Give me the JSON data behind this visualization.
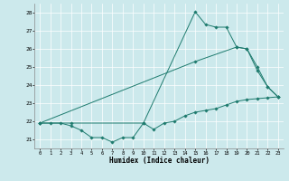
{
  "xlabel": "Humidex (Indice chaleur)",
  "xlim": [
    -0.5,
    23.5
  ],
  "ylim": [
    20.5,
    28.5
  ],
  "yticks": [
    21,
    22,
    23,
    24,
    25,
    26,
    27,
    28
  ],
  "xticks": [
    0,
    1,
    2,
    3,
    4,
    5,
    6,
    7,
    8,
    9,
    10,
    11,
    12,
    13,
    14,
    15,
    16,
    17,
    18,
    19,
    20,
    21,
    22,
    23
  ],
  "bg_color": "#cce9ec",
  "line_color": "#1e7b6e",
  "series1_x": [
    0,
    1,
    2,
    3,
    4,
    5,
    6,
    7,
    8,
    9,
    10,
    11,
    12,
    13,
    14,
    15,
    16,
    17,
    18,
    19,
    20,
    21,
    22,
    23
  ],
  "series1_y": [
    21.9,
    21.9,
    21.9,
    21.75,
    21.5,
    21.1,
    21.1,
    20.85,
    21.1,
    21.1,
    21.9,
    21.55,
    21.9,
    22.0,
    22.3,
    22.5,
    22.6,
    22.7,
    22.9,
    23.1,
    23.2,
    23.25,
    23.3,
    23.35
  ],
  "series2_x": [
    0,
    3,
    10,
    15,
    16,
    17,
    18,
    19,
    20,
    21,
    22,
    23
  ],
  "series2_y": [
    21.9,
    21.9,
    21.9,
    28.05,
    27.35,
    27.2,
    27.2,
    26.1,
    26.0,
    24.8,
    23.9,
    23.35
  ],
  "series3_x": [
    0,
    15,
    19,
    20,
    21,
    22,
    23
  ],
  "series3_y": [
    21.9,
    25.3,
    26.1,
    26.0,
    25.0,
    23.9,
    23.35
  ]
}
